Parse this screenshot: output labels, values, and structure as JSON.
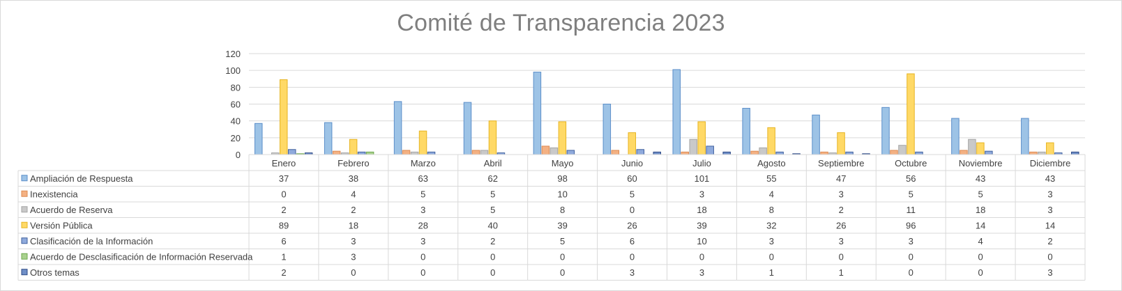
{
  "chart_data": {
    "type": "bar",
    "title": "Comité de Transparencia 2023",
    "categories": [
      "Enero",
      "Febrero",
      "Marzo",
      "Abril",
      "Mayo",
      "Junio",
      "Julio",
      "Agosto",
      "Septiembre",
      "Octubre",
      "Noviembre",
      "Diciembre"
    ],
    "ylim": [
      0,
      120
    ],
    "yticks": [
      "0",
      "20",
      "40",
      "60",
      "80",
      "100",
      "120"
    ],
    "grid": true,
    "legend": "data-table",
    "series": [
      {
        "name": "Ampliación de Respuesta",
        "color": "#9dc3e6",
        "edge": "#5b8ec9",
        "values": [
          37,
          38,
          63,
          62,
          98,
          60,
          101,
          55,
          47,
          56,
          43,
          43
        ]
      },
      {
        "name": "Inexistencia",
        "color": "#f4b183",
        "edge": "#dd8a52",
        "values": [
          0,
          4,
          5,
          5,
          10,
          5,
          3,
          4,
          3,
          5,
          5,
          3
        ]
      },
      {
        "name": "Acuerdo de Reserva",
        "color": "#c9c9c9",
        "edge": "#a5a5a5",
        "values": [
          2,
          2,
          3,
          5,
          8,
          0,
          18,
          8,
          2,
          11,
          18,
          3
        ]
      },
      {
        "name": "Versión Pública",
        "color": "#ffd966",
        "edge": "#e6b422",
        "values": [
          89,
          18,
          28,
          40,
          39,
          26,
          39,
          32,
          26,
          96,
          14,
          14
        ]
      },
      {
        "name": "Clasificación de la Información",
        "color": "#8faadc",
        "edge": "#41619e",
        "values": [
          6,
          3,
          3,
          2,
          5,
          6,
          10,
          3,
          3,
          3,
          4,
          2
        ]
      },
      {
        "name": "Acuerdo de Desclasificación de Información Reservada",
        "color": "#a9d18e",
        "edge": "#6ea84f",
        "values": [
          1,
          3,
          0,
          0,
          0,
          0,
          0,
          0,
          0,
          0,
          0,
          0
        ]
      },
      {
        "name": "Otros temas",
        "color": "#6f8fc7",
        "edge": "#2e4a86",
        "values": [
          2,
          0,
          0,
          0,
          0,
          3,
          3,
          1,
          1,
          0,
          0,
          3
        ]
      }
    ]
  }
}
